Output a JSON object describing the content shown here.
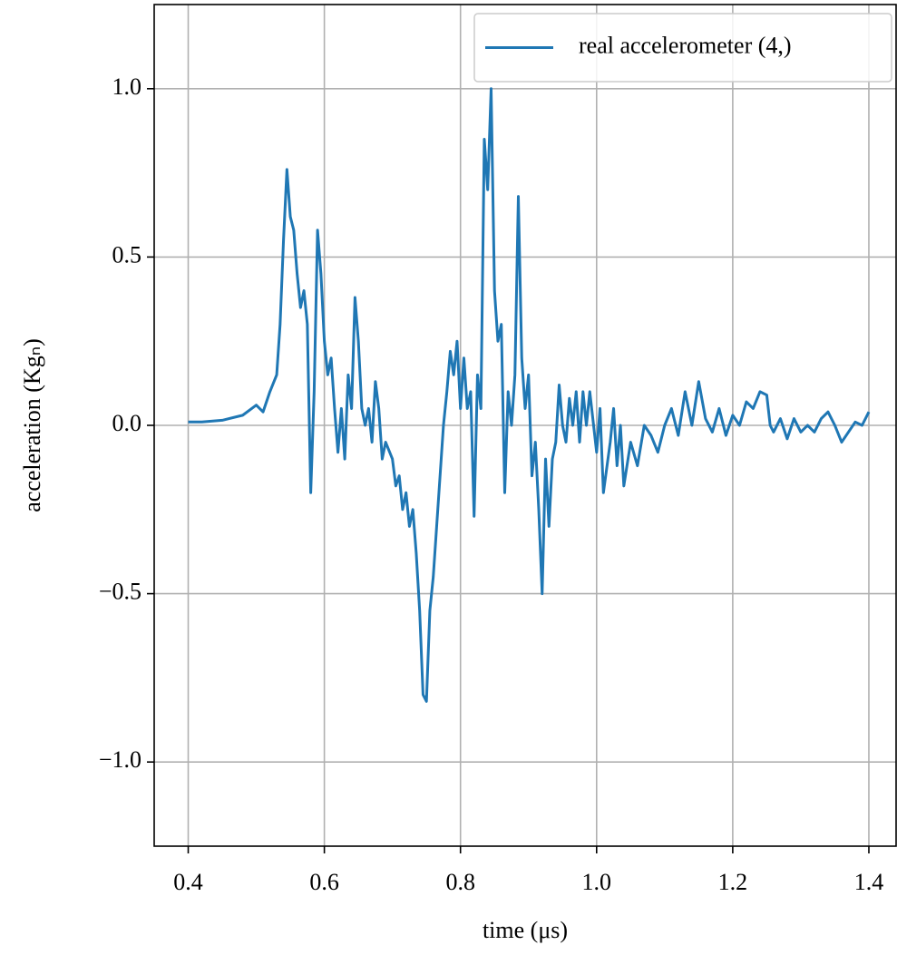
{
  "chart_data": {
    "type": "line",
    "x_label": "time (μs)",
    "y_label": "acceleration (Kgₙ)",
    "xlim": [
      0.35,
      1.44
    ],
    "ylim": [
      -1.25,
      1.25
    ],
    "xticks": [
      0.4,
      0.6,
      0.8,
      {
        "value": 1,
        "label": "1.0"
      },
      1.2,
      1.4
    ],
    "yticks": [
      {
        "value": -1,
        "label": "−1.0"
      },
      {
        "value": -0.5,
        "label": "−0.5"
      },
      {
        "value": 0,
        "label": "0.0"
      },
      0.5,
      {
        "value": 1,
        "label": "1.0"
      }
    ],
    "grid": true,
    "legend": "upper right",
    "x": [
      0.4,
      0.42,
      0.45,
      0.48,
      0.5,
      0.51,
      0.52,
      0.53,
      0.535,
      0.54,
      0.545,
      0.55,
      0.555,
      0.56,
      0.565,
      0.57,
      0.575,
      0.58,
      0.585,
      0.59,
      0.595,
      0.6,
      0.605,
      0.61,
      0.615,
      0.62,
      0.625,
      0.63,
      0.635,
      0.64,
      0.645,
      0.65,
      0.655,
      0.66,
      0.665,
      0.67,
      0.675,
      0.68,
      0.685,
      0.69,
      0.7,
      0.705,
      0.71,
      0.715,
      0.72,
      0.725,
      0.73,
      0.735,
      0.74,
      0.745,
      0.75,
      0.755,
      0.76,
      0.765,
      0.77,
      0.775,
      0.78,
      0.785,
      0.79,
      0.795,
      0.8,
      0.805,
      0.81,
      0.815,
      0.82,
      0.825,
      0.83,
      0.835,
      0.84,
      0.845,
      0.85,
      0.855,
      0.86,
      0.865,
      0.87,
      0.875,
      0.88,
      0.885,
      0.89,
      0.895,
      0.9,
      0.905,
      0.91,
      0.915,
      0.92,
      0.925,
      0.93,
      0.935,
      0.94,
      0.945,
      0.95,
      0.955,
      0.96,
      0.965,
      0.97,
      0.975,
      0.98,
      0.985,
      0.99,
      1.0,
      1.005,
      1.01,
      1.02,
      1.025,
      1.03,
      1.035,
      1.04,
      1.05,
      1.06,
      1.07,
      1.08,
      1.09,
      1.1,
      1.11,
      1.12,
      1.13,
      1.14,
      1.15,
      1.16,
      1.17,
      1.18,
      1.19,
      1.2,
      1.21,
      1.22,
      1.23,
      1.24,
      1.25,
      1.255,
      1.26,
      1.27,
      1.28,
      1.29,
      1.3,
      1.31,
      1.32,
      1.33,
      1.34,
      1.35,
      1.36,
      1.37,
      1.38,
      1.39,
      1.4
    ],
    "series": [
      {
        "name": "real accelerometer (4,)",
        "color": "#1f77b4",
        "values": [
          0.01,
          0.01,
          0.015,
          0.03,
          0.06,
          0.04,
          0.1,
          0.15,
          0.3,
          0.55,
          0.76,
          0.62,
          0.58,
          0.45,
          0.35,
          0.4,
          0.3,
          -0.2,
          0.1,
          0.58,
          0.45,
          0.25,
          0.15,
          0.2,
          0.05,
          -0.08,
          0.05,
          -0.1,
          0.15,
          0.05,
          0.38,
          0.25,
          0.05,
          0.0,
          0.05,
          -0.05,
          0.13,
          0.05,
          -0.1,
          -0.05,
          -0.1,
          -0.18,
          -0.15,
          -0.25,
          -0.2,
          -0.3,
          -0.25,
          -0.38,
          -0.55,
          -0.8,
          -0.82,
          -0.55,
          -0.45,
          -0.3,
          -0.15,
          0.0,
          0.1,
          0.22,
          0.15,
          0.25,
          0.05,
          0.2,
          0.05,
          0.1,
          -0.27,
          0.15,
          0.05,
          0.85,
          0.7,
          1.0,
          0.4,
          0.25,
          0.3,
          -0.2,
          0.1,
          0.0,
          0.15,
          0.68,
          0.2,
          0.05,
          0.15,
          -0.15,
          -0.05,
          -0.25,
          -0.5,
          -0.1,
          -0.3,
          -0.1,
          -0.05,
          0.12,
          0.0,
          -0.05,
          0.08,
          0.0,
          0.1,
          -0.05,
          0.1,
          0.0,
          0.1,
          -0.08,
          0.05,
          -0.2,
          -0.05,
          0.05,
          -0.12,
          0.0,
          -0.18,
          -0.05,
          -0.12,
          0.0,
          -0.03,
          -0.08,
          0.0,
          0.05,
          -0.03,
          0.1,
          0.0,
          0.13,
          0.02,
          -0.02,
          0.05,
          -0.03,
          0.03,
          0.0,
          0.07,
          0.05,
          0.1,
          0.09,
          0.0,
          -0.02,
          0.02,
          -0.04,
          0.02,
          -0.02,
          0.0,
          -0.02,
          0.02,
          0.04,
          0.0,
          -0.05,
          -0.02,
          0.01,
          0.0,
          0.04
        ]
      }
    ]
  }
}
